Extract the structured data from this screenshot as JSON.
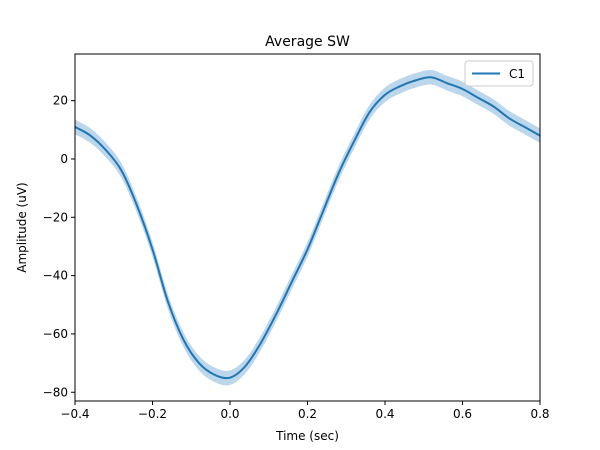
{
  "chart_data": {
    "type": "line",
    "title": "Average SW",
    "xlabel": "Time (sec)",
    "ylabel": "Amplitude (uV)",
    "xlim": [
      -0.4,
      0.8
    ],
    "ylim": [
      -83,
      36
    ],
    "xticks": [
      -0.4,
      -0.2,
      0.0,
      0.2,
      0.4,
      0.6,
      0.8
    ],
    "xtick_labels": [
      "−0.4",
      "−0.2",
      "0.0",
      "0.2",
      "0.4",
      "0.6",
      "0.8"
    ],
    "yticks": [
      -80,
      -60,
      -40,
      -20,
      0,
      20
    ],
    "ytick_labels": [
      "−80",
      "−60",
      "−40",
      "−20",
      "0",
      "20"
    ],
    "grid": false,
    "legend_position": "top-right",
    "band_halfwidth": 2.5,
    "series": [
      {
        "name": "C1",
        "color": "#1f77b4",
        "band_color": "#a6c8e6",
        "x": [
          -0.4,
          -0.36,
          -0.32,
          -0.28,
          -0.24,
          -0.2,
          -0.16,
          -0.12,
          -0.08,
          -0.04,
          0.0,
          0.04,
          0.08,
          0.12,
          0.16,
          0.2,
          0.24,
          0.28,
          0.32,
          0.36,
          0.4,
          0.44,
          0.48,
          0.52,
          0.56,
          0.6,
          0.64,
          0.68,
          0.72,
          0.76,
          0.8
        ],
        "y": [
          11,
          8,
          3,
          -4,
          -16,
          -31,
          -49,
          -62,
          -70,
          -74,
          -75,
          -71,
          -63,
          -53,
          -42,
          -31,
          -18,
          -5,
          6,
          16,
          22,
          25,
          27,
          28,
          26,
          24,
          21,
          18,
          14,
          11,
          8
        ]
      }
    ]
  }
}
